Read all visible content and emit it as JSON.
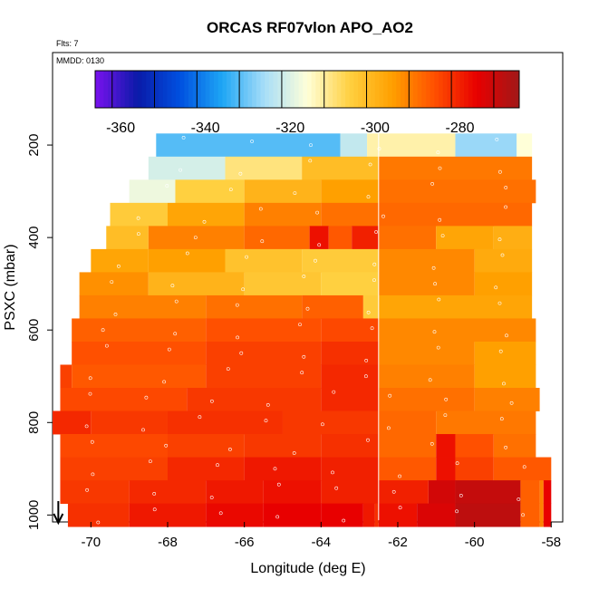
{
  "chart_data": {
    "type": "heatmap",
    "title": "ORCAS RF07vlon APO_AO2",
    "flights_note": "Flts: 7",
    "date_note": "MMDD: 0130",
    "xlabel": "Longitude (deg E)",
    "ylabel": "PSXC (mbar)",
    "xlim": [
      -71.0,
      -57.7
    ],
    "ylim": [
      1015,
      0
    ],
    "x_ticks": [
      -70,
      -68,
      -66,
      -64,
      -62,
      -60,
      -58
    ],
    "x_tick_labels": [
      "-70",
      "-68",
      "-66",
      "-64",
      "-62",
      "-60",
      "-58"
    ],
    "y_ticks": [
      200,
      400,
      600,
      800,
      1000
    ],
    "y_tick_labels": [
      "200",
      "400",
      "600",
      "800",
      "1000"
    ],
    "colorbar": {
      "range": [
        -366,
        -266
      ],
      "ticks": [
        -360,
        -340,
        -320,
        -300,
        -280
      ],
      "tick_labels": [
        "-360",
        "-340",
        "-320",
        "-300",
        "-280"
      ],
      "colors": [
        "#7a12ee",
        "#0a1aa8",
        "#0050e0",
        "#1ea6f5",
        "#a8def8",
        "#ffffd8",
        "#ffd040",
        "#ffa000",
        "#ff5000",
        "#e80000",
        "#a01818"
      ]
    },
    "bin_size_mbar": 50,
    "vertical_line_lon": -62.5,
    "flight_track_marker_lon": -70.85,
    "layers": [
      {
        "p": 200,
        "lon_start": -68.3,
        "lon_end": -58.5,
        "bounds": [
          -68.3,
          -63.5,
          -62.8,
          -60.5,
          -58.9,
          -58.5
        ],
        "values": [
          -332,
          -323,
          -313,
          -327,
          -316
        ]
      },
      {
        "p": 250,
        "lon_start": -68.5,
        "lon_end": -58.5,
        "bounds": [
          -68.5,
          -66.5,
          -64.5,
          -62.5,
          -58.5
        ],
        "values": [
          -321,
          -310,
          -302,
          -291
        ]
      },
      {
        "p": 300,
        "lon_start": -69.0,
        "lon_end": -58.4,
        "bounds": [
          -69.0,
          -67.8,
          -66.0,
          -64.0,
          -62.5,
          -58.4
        ],
        "values": [
          -318,
          -306,
          -300,
          -296,
          -290
        ]
      },
      {
        "p": 350,
        "lon_start": -69.5,
        "lon_end": -58.5,
        "bounds": [
          -69.5,
          -68.0,
          -66.0,
          -64.0,
          -62.5,
          -58.5
        ],
        "values": [
          -305,
          -297,
          -292,
          -290,
          -289
        ]
      },
      {
        "p": 400,
        "lon_start": -69.6,
        "lon_end": -58.5,
        "bounds": [
          -69.6,
          -68.5,
          -66.0,
          -64.3,
          -63.8,
          -63.2,
          -62.5,
          -61.0,
          -59.5,
          -58.5
        ],
        "values": [
          -302,
          -292,
          -289,
          -278,
          -287,
          -280,
          -290,
          -297,
          -299
        ]
      },
      {
        "p": 450,
        "lon_start": -70.0,
        "lon_end": -58.5,
        "bounds": [
          -70.0,
          -68.5,
          -66.5,
          -64.5,
          -62.5,
          -60.0,
          -58.5
        ],
        "values": [
          -297,
          -296,
          -303,
          -305,
          -293,
          -298
        ]
      },
      {
        "p": 500,
        "lon_start": -70.3,
        "lon_end": -58.5,
        "bounds": [
          -70.3,
          -68.5,
          -66.0,
          -64.0,
          -62.5,
          -60.0,
          -58.5
        ],
        "values": [
          -294,
          -300,
          -304,
          -306,
          -293,
          -296
        ]
      },
      {
        "p": 550,
        "lon_start": -70.3,
        "lon_end": -58.5,
        "bounds": [
          -70.3,
          -67.0,
          -64.5,
          -62.9,
          -62.5,
          -58.5
        ],
        "values": [
          -292,
          -290,
          -288,
          -305,
          -297
        ]
      },
      {
        "p": 600,
        "lon_start": -70.5,
        "lon_end": -58.4,
        "bounds": [
          -70.5,
          -67.0,
          -64.0,
          -62.5,
          -58.4
        ],
        "values": [
          -288,
          -286,
          -285,
          -293
        ]
      },
      {
        "p": 650,
        "lon_start": -70.5,
        "lon_end": -58.4,
        "bounds": [
          -70.5,
          -67.0,
          -64.0,
          -62.5,
          -60.0,
          -58.4
        ],
        "values": [
          -286,
          -284,
          -282,
          -293,
          -296
        ]
      },
      {
        "p": 700,
        "lon_start": -70.8,
        "lon_end": -58.4,
        "bounds": [
          -70.8,
          -70.5,
          -67.0,
          -64.0,
          -62.5,
          -60.0,
          -58.4
        ],
        "values": [
          -284,
          -287,
          -284,
          -281,
          -292,
          -296
        ]
      },
      {
        "p": 750,
        "lon_start": -70.8,
        "lon_end": -58.3,
        "bounds": [
          -70.8,
          -67.5,
          -64.0,
          -62.5,
          -60.0,
          -58.3
        ],
        "values": [
          -285,
          -283,
          -281,
          -290,
          -292
        ]
      },
      {
        "p": 800,
        "lon_start": -71.0,
        "lon_end": -58.4,
        "bounds": [
          -71.0,
          -70.0,
          -68.0,
          -65.0,
          -62.5,
          -61.0,
          -58.4
        ],
        "values": [
          -281,
          -283,
          -282,
          -283,
          -289,
          -291
        ]
      },
      {
        "p": 850,
        "lon_start": -70.8,
        "lon_end": -58.4,
        "bounds": [
          -70.8,
          -68.0,
          -66.0,
          -64.0,
          -62.5,
          -61.0,
          -60.5,
          -59.5,
          -58.4
        ],
        "values": [
          -285,
          -284,
          -283,
          -282,
          -289,
          -278,
          -286,
          -290
        ]
      },
      {
        "p": 900,
        "lon_start": -70.8,
        "lon_end": -58.0,
        "bounds": [
          -70.8,
          -68.0,
          -66.0,
          -64.0,
          -62.5,
          -61.0,
          -60.5,
          -59.5,
          -58.0
        ],
        "values": [
          -284,
          -281,
          -279,
          -280,
          -287,
          -278,
          -284,
          -287
        ]
      },
      {
        "p": 950,
        "lon_start": -70.8,
        "lon_end": -58.0,
        "bounds": [
          -70.8,
          -69.0,
          -67.0,
          -65.5,
          -64.0,
          -62.5,
          -61.2,
          -60.5,
          -58.8,
          -58.3,
          -58.2,
          -58.0
        ],
        "values": [
          -283,
          -281,
          -279,
          -278,
          -280,
          -280,
          -273,
          -271,
          -288,
          -292,
          -276
        ]
      },
      {
        "p": 1000,
        "lon_start": -70.6,
        "lon_end": -58.0,
        "bounds": [
          -70.6,
          -69.0,
          -67.0,
          -65.5,
          -64.0,
          -62.9,
          -62.6,
          -62.5,
          -61.5,
          -60.5,
          -58.8,
          -58.3,
          -58.2,
          -58.0
        ],
        "values": [
          -282,
          -279,
          -277,
          -276,
          -276,
          -279,
          -282,
          -278,
          -274,
          -270,
          -288,
          -292,
          -276
        ]
      }
    ]
  }
}
